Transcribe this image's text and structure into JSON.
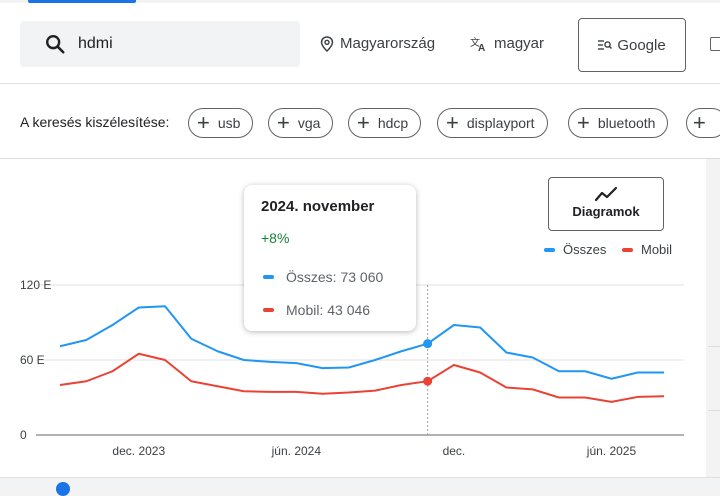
{
  "search": {
    "query": "hdmi"
  },
  "filters": {
    "region": "Magyarország",
    "language": "magyar",
    "engine": "Google"
  },
  "refine": {
    "label": "A keresés kiszélesítése:",
    "chips": [
      "usb",
      "vga",
      "hdcp",
      "displayport",
      "bluetooth"
    ]
  },
  "diagram_button": {
    "label": "Diagramok"
  },
  "legend": [
    {
      "name": "Összes",
      "color": "#2196f3"
    },
    {
      "name": "Mobil",
      "color": "#ea4335"
    }
  ],
  "tooltip": {
    "date": "2024. november",
    "change": "+8%",
    "series": [
      {
        "text": "Összes: 73 060",
        "color": "#2196f3"
      },
      {
        "text": "Mobil: 43 046",
        "color": "#ea4335"
      }
    ]
  },
  "chart_data": {
    "type": "line",
    "ylim": [
      0,
      120000
    ],
    "y_ticks": [
      0,
      60000,
      120000
    ],
    "y_tick_labels": [
      "0",
      "60 E",
      "120 E"
    ],
    "x_tick_labels": [
      {
        "label": "dec. 2023",
        "index": 3
      },
      {
        "label": "jún. 2024",
        "index": 9
      },
      {
        "label": "dec.",
        "index": 15
      },
      {
        "label": "jún. 2025",
        "index": 21
      }
    ],
    "highlight_index": 14,
    "series": [
      {
        "name": "Összes",
        "color": "#2196f3",
        "values": [
          71000,
          76000,
          88000,
          102000,
          103000,
          77000,
          67000,
          60000,
          58500,
          57500,
          53500,
          54000,
          60000,
          67000,
          73060,
          88000,
          86000,
          66000,
          62000,
          51000,
          51000,
          45000,
          50000,
          50000
        ]
      },
      {
        "name": "Mobil",
        "color": "#ea4335",
        "values": [
          40000,
          43000,
          51000,
          65000,
          60000,
          43000,
          39000,
          35000,
          34500,
          34500,
          33000,
          34000,
          35500,
          40000,
          43046,
          56000,
          50000,
          38000,
          36500,
          30000,
          30000,
          26500,
          30500,
          31000
        ]
      }
    ]
  }
}
